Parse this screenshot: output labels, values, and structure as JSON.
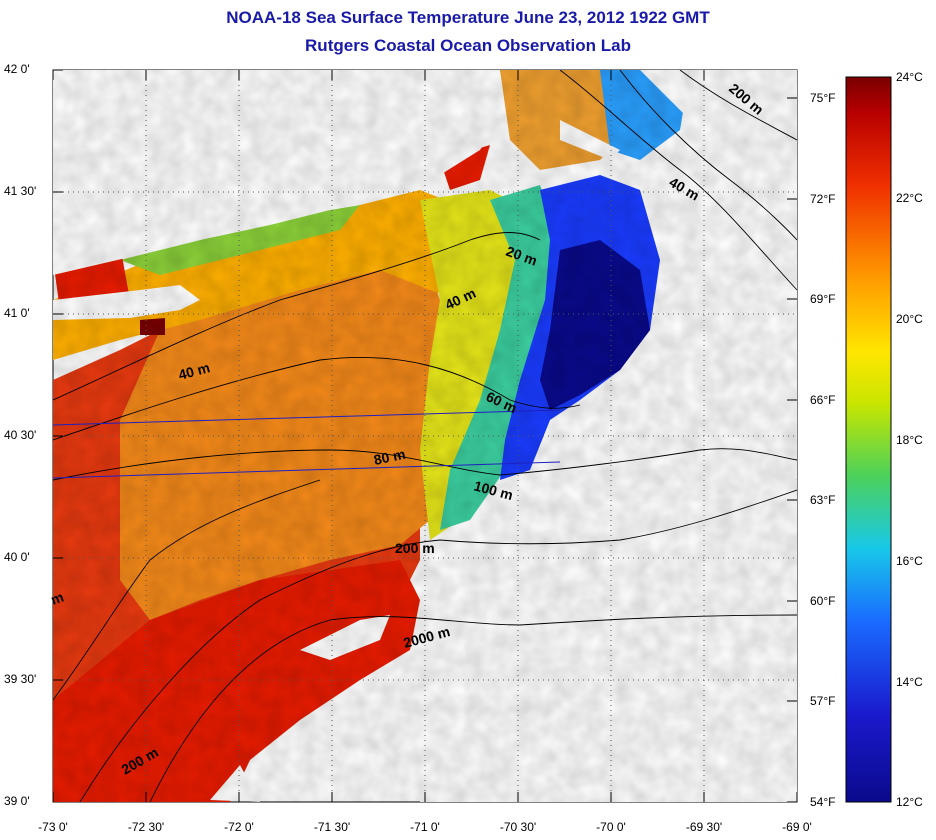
{
  "title_line1": "NOAA-18 Sea Surface Temperature June 23, 2012 1922 GMT",
  "title_line2": "Rutgers Coastal Ocean Observation Lab",
  "lat_labels": [
    "42 0'",
    "41 30'",
    "41 0'",
    "40 30'",
    "40 0'",
    "39 30'",
    "39 0'"
  ],
  "lon_labels": [
    "-73 0'",
    "-72 30'",
    "-72 0'",
    "-71 30'",
    "-71 0'",
    "-70 30'",
    "-70 0'",
    "-69 30'",
    "-69 0'"
  ],
  "fahrenheit_labels": [
    "75°F",
    "72°F",
    "69°F",
    "66°F",
    "63°F",
    "60°F",
    "57°F",
    "54°F"
  ],
  "celsius_labels": [
    "24°C",
    "22°C",
    "20°C",
    "18°C",
    "16°C",
    "14°C",
    "12°C"
  ],
  "contour_labels": [
    "20 m",
    "40 m",
    "40 m",
    "40 m",
    "60 m",
    "80 m",
    "100 m",
    "200 m",
    "2000 m",
    "200 m",
    "200 m",
    "m"
  ],
  "colors": {
    "title": "#1a1aa8",
    "warmest": "#7a0000",
    "warm": "#e81c00",
    "mid_orange": "#ff8c00",
    "yellow": "#ffe600",
    "green": "#4cd15a",
    "cyan": "#18c8e8",
    "blue": "#1a3cff",
    "coldest": "#0a0a8c"
  }
}
